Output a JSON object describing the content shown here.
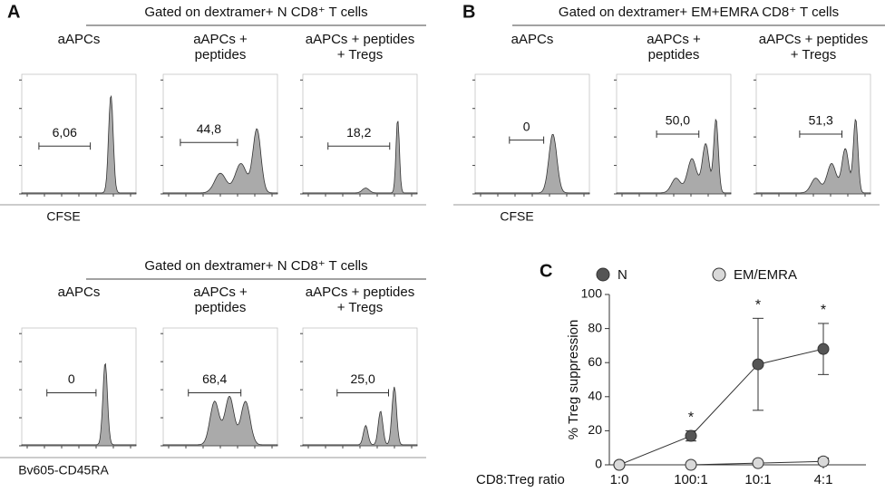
{
  "panels": [
    {
      "letter": "A",
      "title": "Gated on dextramer+ N CD8⁺ T cells",
      "columns": [
        [
          "aAPCs"
        ],
        [
          "aAPCs +",
          "peptides"
        ],
        [
          "aAPCs + peptides",
          "+ Tregs"
        ]
      ],
      "gate_values": [
        "6,06",
        "44,8",
        "18,2"
      ],
      "xlabel": "CFSE"
    },
    {
      "letter": "B",
      "title": "Gated on dextramer+ EM+EMRA CD8⁺ T cells",
      "columns": [
        [
          "aAPCs"
        ],
        [
          "aAPCs +",
          "peptides"
        ],
        [
          "aAPCs + peptides",
          "+ Tregs"
        ]
      ],
      "gate_values": [
        "0",
        "50,0",
        "51,3"
      ],
      "xlabel": "CFSE"
    },
    {
      "title": "Gated on dextramer+ N CD8⁺ T cells",
      "columns": [
        [
          "aAPCs"
        ],
        [
          "aAPCs +",
          "peptides"
        ],
        [
          "aAPCs + peptides",
          "+ Tregs"
        ]
      ],
      "gate_values": [
        "0",
        "68,4",
        "25,0"
      ],
      "xlabel": "Bv605-CD45RA"
    }
  ],
  "chart_data": {
    "type": "line",
    "letter": "C",
    "ylabel": "% Treg suppression",
    "xlabel": "CD8:Treg ratio",
    "categories": [
      "1:0",
      "100:1",
      "10:1",
      "4:1"
    ],
    "ylim": [
      0,
      100
    ],
    "yticks": [
      0,
      20,
      40,
      60,
      80,
      100
    ],
    "series": [
      {
        "name": "N",
        "color": "#555555",
        "values": [
          0,
          17,
          59,
          68
        ],
        "errors": [
          0,
          3,
          27,
          15
        ]
      },
      {
        "name": "EM/EMRA",
        "color": "#d9d9d9",
        "values": [
          0,
          0,
          1,
          2
        ],
        "errors": [
          0,
          0,
          0,
          2
        ]
      }
    ],
    "annotations": [
      null,
      "*",
      "*",
      "*"
    ]
  }
}
